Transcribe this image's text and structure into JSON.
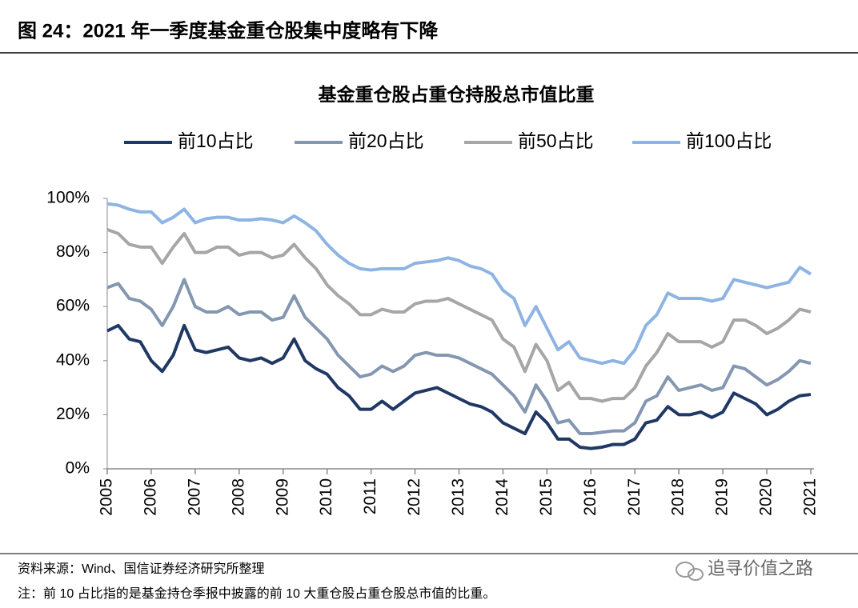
{
  "header": {
    "figure_title": "图 24：2021 年一季度基金重仓股集中度略有下降"
  },
  "chart_data": {
    "type": "line",
    "title": "基金重仓股占重仓持股总市值比重",
    "x": [
      2005,
      2005.25,
      2005.5,
      2005.75,
      2006,
      2006.25,
      2006.5,
      2006.75,
      2007,
      2007.25,
      2007.5,
      2007.75,
      2008,
      2008.25,
      2008.5,
      2008.75,
      2009,
      2009.25,
      2009.5,
      2009.75,
      2010,
      2010.25,
      2010.5,
      2010.75,
      2011,
      2011.25,
      2011.5,
      2011.75,
      2012,
      2012.25,
      2012.5,
      2012.75,
      2013,
      2013.25,
      2013.5,
      2013.75,
      2014,
      2014.25,
      2014.5,
      2014.75,
      2015,
      2015.25,
      2015.5,
      2015.75,
      2016,
      2016.25,
      2016.5,
      2016.75,
      2017,
      2017.25,
      2017.5,
      2017.75,
      2018,
      2018.25,
      2018.5,
      2018.75,
      2019,
      2019.25,
      2019.5,
      2019.75,
      2020,
      2020.25,
      2020.5,
      2020.75,
      2021
    ],
    "series": [
      {
        "name": "前10占比",
        "color": "#1f3864",
        "values": [
          51,
          53,
          48,
          47,
          40,
          36,
          42,
          53,
          44,
          43,
          44,
          45,
          41,
          40,
          41,
          39,
          41,
          48,
          40,
          37,
          35,
          30,
          27,
          22,
          22,
          25,
          22,
          25,
          28,
          29,
          30,
          28,
          26,
          24,
          23,
          21,
          17,
          15,
          13,
          21,
          17,
          11,
          11,
          8,
          7.5,
          8,
          9,
          9,
          11,
          17,
          18,
          23,
          20,
          20,
          21,
          19,
          21,
          28,
          26,
          24,
          20,
          22,
          25,
          27,
          27.5
        ]
      },
      {
        "name": "前20占比",
        "color": "#8497b0",
        "values": [
          67,
          68.5,
          63,
          62,
          59,
          53,
          60,
          70,
          60,
          58,
          58,
          60,
          57,
          58,
          58,
          55,
          56,
          64,
          56,
          52,
          48,
          42,
          38,
          34,
          35,
          38,
          36,
          38,
          42,
          43,
          42,
          42,
          41,
          39,
          37,
          35,
          31,
          27,
          21,
          31,
          25,
          17,
          18,
          13,
          13,
          13.5,
          14,
          14,
          17,
          25,
          27,
          34,
          29,
          30,
          31,
          29,
          30,
          38,
          37,
          34,
          31,
          33,
          36,
          40,
          39
        ]
      },
      {
        "name": "前50占比",
        "color": "#a6a6a6",
        "values": [
          88.5,
          87,
          83,
          82,
          82,
          76,
          82,
          87,
          80,
          80,
          82,
          82,
          79,
          80,
          80,
          78,
          79,
          83,
          78,
          74,
          68,
          64,
          61,
          57,
          57,
          59,
          58,
          58,
          61,
          62,
          62,
          63,
          61,
          59,
          57,
          55,
          48,
          45,
          36,
          46,
          40,
          29,
          32,
          26,
          26,
          25,
          26,
          26,
          30,
          38,
          43,
          50,
          47,
          47,
          47,
          45,
          47,
          55,
          55,
          53,
          50,
          52,
          55,
          59,
          58
        ]
      },
      {
        "name": "前100占比",
        "color": "#8eb4e3",
        "values": [
          98,
          97.5,
          96,
          95,
          95,
          91,
          93,
          96,
          91,
          92.5,
          93,
          93,
          92,
          92,
          92.5,
          92,
          91,
          93.5,
          91,
          88,
          83,
          79,
          76,
          74,
          73.5,
          74,
          74,
          74,
          76,
          76.5,
          77,
          78,
          77,
          75,
          74,
          72,
          66,
          63,
          53,
          60,
          52,
          44,
          47,
          41,
          40,
          39,
          40,
          39,
          44,
          53,
          57,
          65,
          63,
          63,
          63,
          62,
          63,
          70,
          69,
          68,
          67,
          68,
          69,
          74.5,
          72
        ]
      }
    ],
    "xlim": [
      2005,
      2021
    ],
    "xticks": [
      2005,
      2006,
      2007,
      2008,
      2009,
      2010,
      2011,
      2012,
      2013,
      2014,
      2015,
      2016,
      2017,
      2018,
      2019,
      2020,
      2021
    ],
    "ylim": [
      0,
      100
    ],
    "yticks": [
      {
        "value": 0,
        "label": "0%"
      },
      {
        "value": 20,
        "label": "20%"
      },
      {
        "value": 40,
        "label": "40%"
      },
      {
        "value": 60,
        "label": "60%"
      },
      {
        "value": 80,
        "label": "80%"
      },
      {
        "value": 100,
        "label": "100%"
      }
    ],
    "grid": false,
    "legend": "top"
  },
  "footer": {
    "source": "资料来源：Wind、国信证券经济研究所整理",
    "note": "注：前 10 占比指的是基金持仓季报中披露的前 10 大重仓股占重仓股总市值的比重。",
    "watermark": "追寻价值之路"
  }
}
